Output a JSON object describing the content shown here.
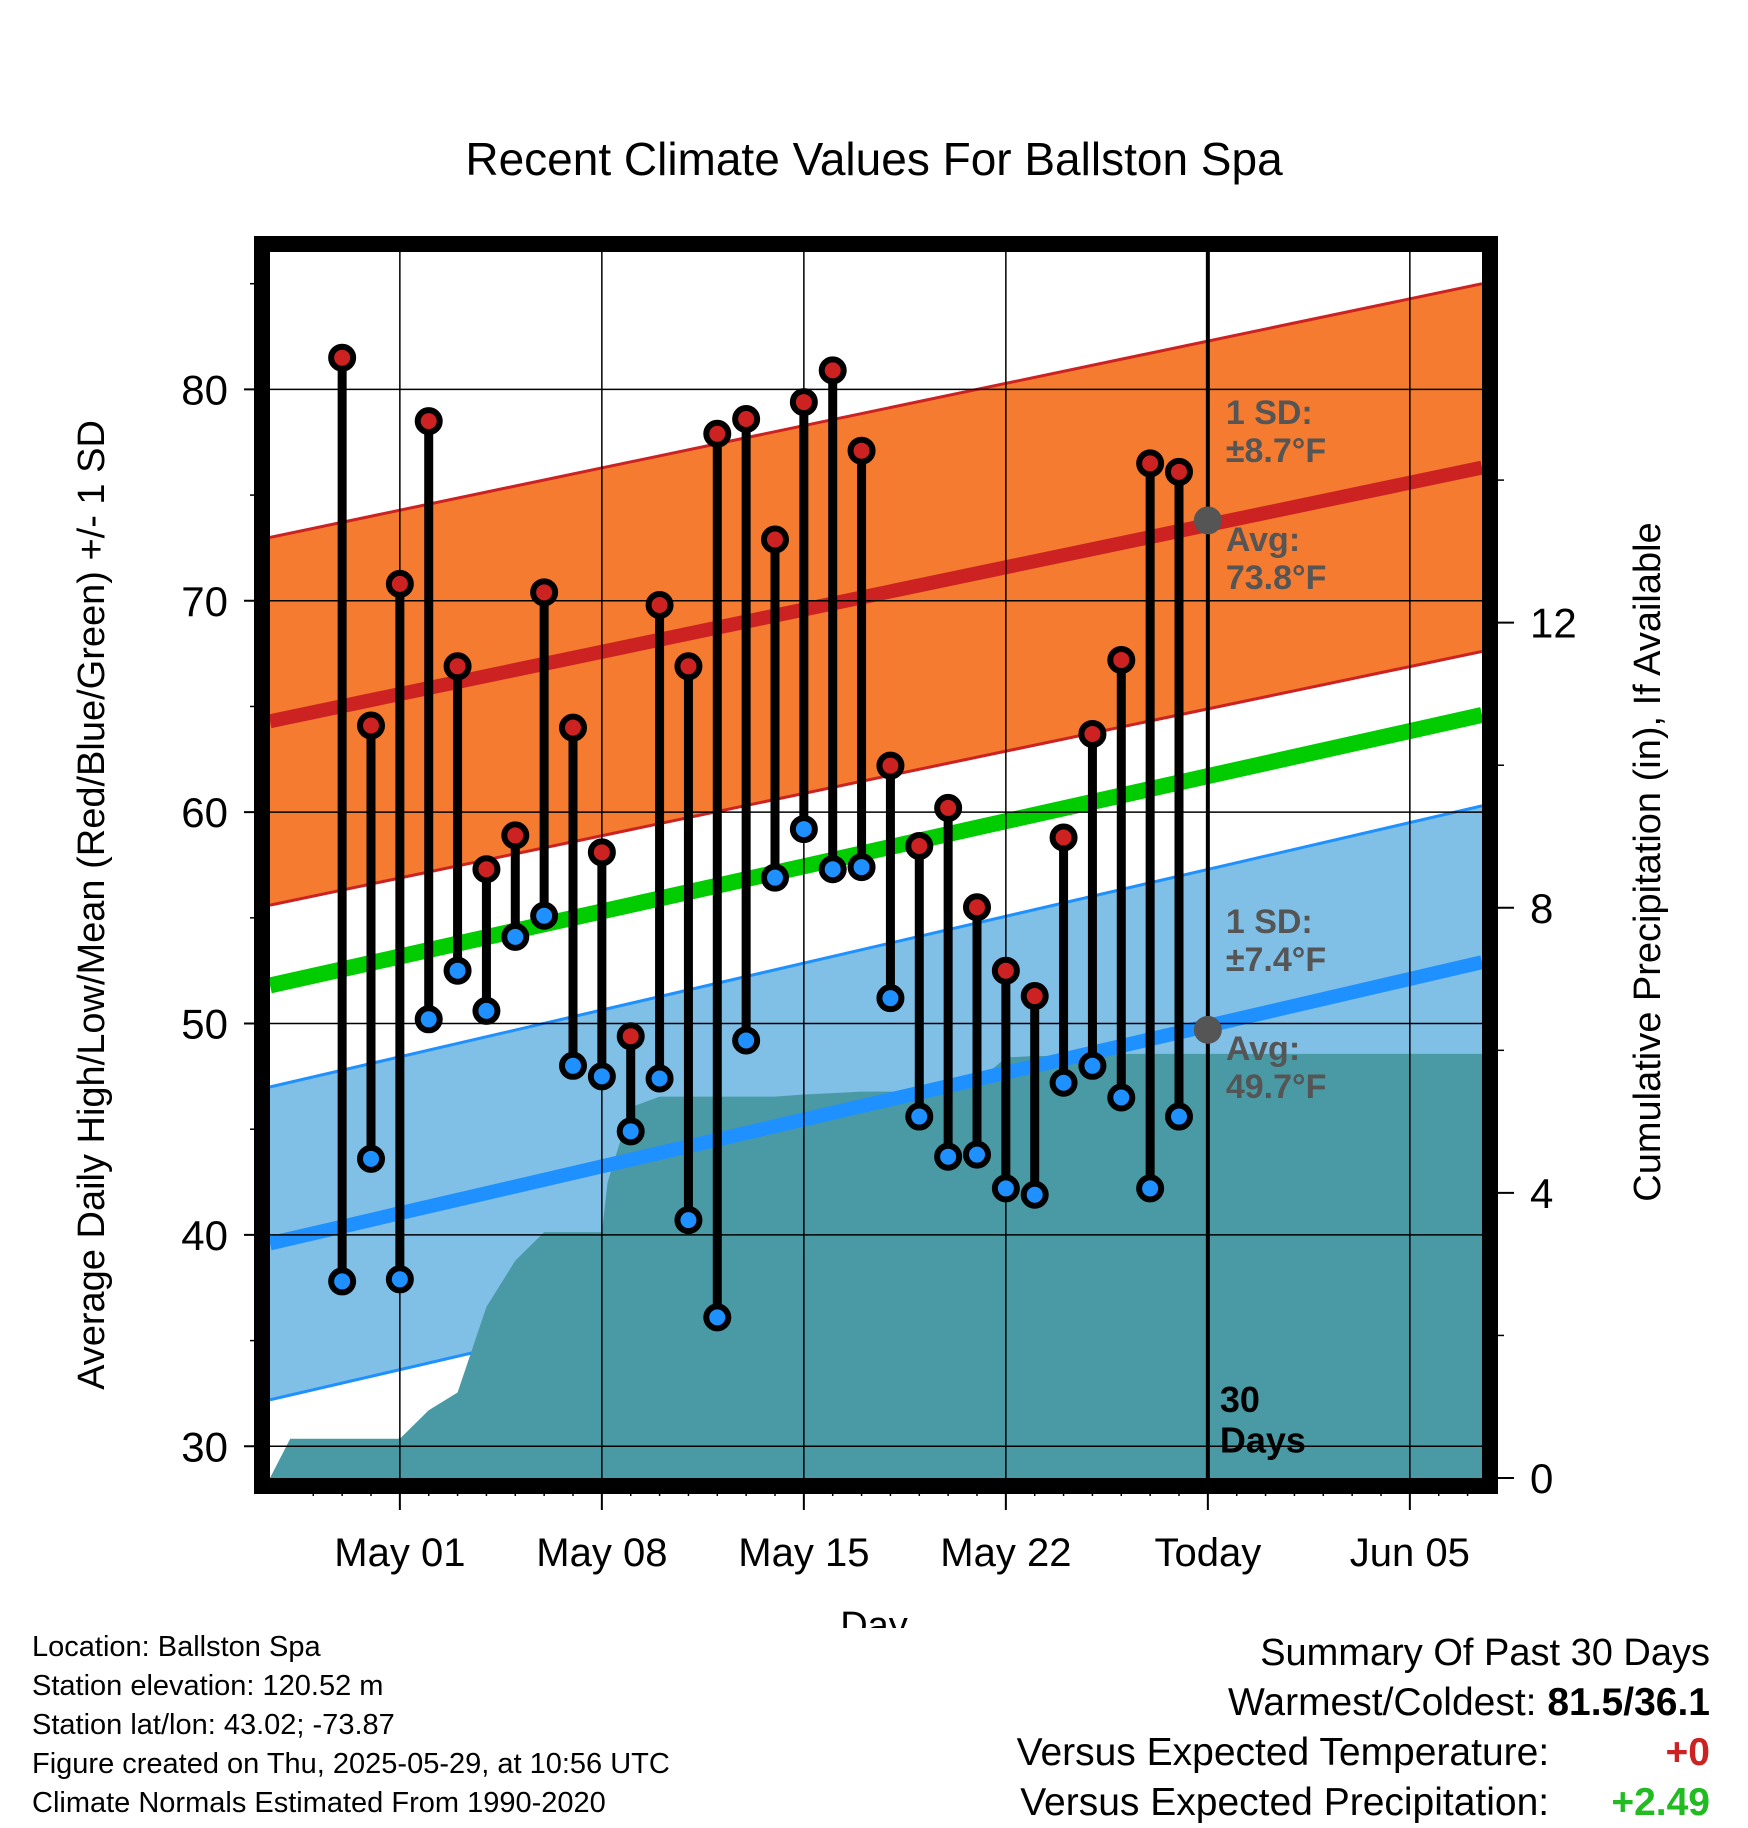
{
  "chart_data": {
    "type": "line",
    "title": "Recent Climate Values For Ballston Spa",
    "xlabel": "Day",
    "ylabel_left": "Average Daily High/Low/Mean (Red/Blue/Green) +/- 1 SD",
    "ylabel_right": "Cumulative Precipitation (in), If Available",
    "ylim_left": [
      28.5,
      86.5
    ],
    "ylim_right": [
      0,
      17.2
    ],
    "x_range_days": [
      -32.5,
      9.5
    ],
    "grid": true,
    "x_tick_labels": [
      "May 01",
      "May 08",
      "May 15",
      "May 22",
      "Today",
      "Jun 05"
    ],
    "x_tick_days": [
      -28,
      -21,
      -14,
      -7,
      0,
      7
    ],
    "y_ticks_left": [
      30,
      40,
      50,
      60,
      70,
      80
    ],
    "y_ticks_right": [
      0,
      4,
      8,
      12
    ],
    "today_marker_label": "30\nDays",
    "normals": {
      "high_avg": {
        "x": [
          -32.5,
          9.5
        ],
        "y": [
          64.3,
          76.3
        ]
      },
      "high_sd": 8.7,
      "low_avg": {
        "x": [
          -32.5,
          9.5
        ],
        "y": [
          39.6,
          52.9
        ]
      },
      "low_sd": 7.4,
      "mean_avg": {
        "x": [
          -32.5,
          9.5
        ],
        "y": [
          51.8,
          64.6
        ]
      },
      "high_label_sd": "1 SD:\n±8.7°F",
      "high_label_avg": "Avg:\n73.8°F",
      "low_label_sd": "1 SD:\n±7.4°F",
      "low_label_avg": "Avg:\n49.7°F",
      "today_high_avg": 73.8,
      "today_low_avg": 49.7
    },
    "series": [
      {
        "name": "High",
        "x": [
          -30,
          -29,
          -28,
          -27,
          -26,
          -25,
          -24,
          -23,
          -22,
          -21,
          -20,
          -19,
          -18,
          -17,
          -16,
          -15,
          -14,
          -13,
          -12,
          -11,
          -10,
          -9,
          -8,
          -7,
          -6,
          -5,
          -4,
          -3,
          -2,
          -1
        ],
        "values": [
          81.5,
          64.1,
          70.8,
          78.5,
          66.9,
          57.3,
          58.9,
          70.4,
          64.0,
          58.1,
          49.4,
          69.8,
          66.9,
          77.9,
          78.6,
          72.9,
          79.4,
          80.9,
          77.1,
          62.2,
          58.4,
          60.2,
          55.5,
          52.5,
          51.3,
          58.8,
          63.7,
          67.2,
          76.5,
          76.1
        ]
      },
      {
        "name": "Low",
        "x": [
          -30,
          -29,
          -28,
          -27,
          -26,
          -25,
          -24,
          -23,
          -22,
          -21,
          -20,
          -19,
          -18,
          -17,
          -16,
          -15,
          -14,
          -13,
          -12,
          -11,
          -10,
          -9,
          -8,
          -7,
          -6,
          -5,
          -4,
          -3,
          -2,
          -1
        ],
        "values": [
          37.8,
          43.6,
          37.9,
          50.2,
          52.5,
          50.6,
          54.1,
          55.1,
          48.0,
          47.5,
          44.9,
          47.4,
          40.7,
          36.1,
          49.2,
          56.9,
          59.2,
          57.3,
          57.4,
          51.2,
          45.6,
          43.7,
          43.8,
          42.2,
          41.9,
          47.2,
          48.0,
          46.5,
          42.2,
          45.6
        ]
      },
      {
        "name": "Cumulative Precipitation",
        "x": [
          -32.5,
          -31.8,
          -29.5,
          -28,
          -27,
          -26,
          -25,
          -24,
          -23,
          -22,
          -21,
          -20.8,
          -20,
          -19,
          -18,
          -17,
          -16,
          -15,
          -14,
          -13,
          -12,
          -11,
          -10,
          -9,
          -8,
          -7,
          -6,
          -5,
          -4,
          -3,
          -2,
          -1,
          9.5
        ],
        "values": [
          0,
          0.55,
          0.55,
          0.55,
          0.95,
          1.2,
          2.4,
          3.05,
          3.45,
          3.45,
          3.45,
          4.15,
          5.2,
          5.35,
          5.35,
          5.35,
          5.35,
          5.35,
          5.38,
          5.4,
          5.42,
          5.42,
          5.42,
          5.45,
          5.55,
          5.9,
          5.92,
          5.92,
          5.92,
          5.95,
          5.95,
          5.95,
          5.95
        ]
      }
    ]
  },
  "summary": {
    "heading": "Summary Of Past 30 Days",
    "warmest_coldest_label": "Warmest/Coldest:",
    "warmest_coldest_value": "81.5/36.1",
    "vs_temp_label": "Versus Expected Temperature:",
    "vs_temp_value": "+0",
    "vs_precip_label": "Versus Expected Precipitation:",
    "vs_precip_value": "+2.49",
    "temp_color": "#cc2222",
    "precip_color": "#22bb22"
  },
  "meta": {
    "location": "Location: Ballston Spa",
    "elevation": "Station elevation: 120.52 m",
    "latlon": "Station lat/lon: 43.02; -73.87",
    "created": "Figure created on Thu, 2025-05-29, at 10:56 UTC",
    "normals": "Climate Normals Estimated From 1990-2020"
  },
  "colors": {
    "high_band": "#f47b30",
    "high_line": "#cc2222",
    "low_band": "#80c0e6",
    "low_line": "#1e90ff",
    "mean_line": "#00cc00",
    "precip": "#4a9aa5",
    "high_dot": "#cc2222",
    "low_dot": "#1e90ff",
    "label_gray": "#555555"
  }
}
